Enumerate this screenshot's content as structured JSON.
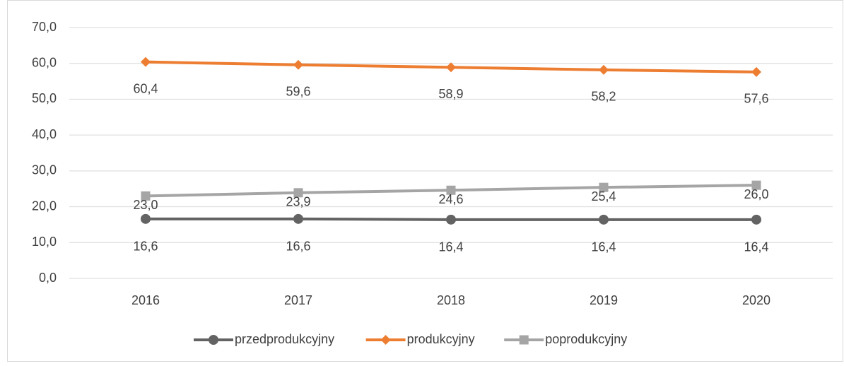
{
  "chart_data": {
    "type": "line",
    "categories": [
      "2016",
      "2017",
      "2018",
      "2019",
      "2020"
    ],
    "series": [
      {
        "name": "przedprodukcyjny",
        "color": "#636363",
        "marker": "circle",
        "values": [
          16.6,
          16.6,
          16.4,
          16.4,
          16.4
        ],
        "value_labels": [
          "16,6",
          "16,6",
          "16,4",
          "16,4",
          "16,4"
        ]
      },
      {
        "name": "produkcyjny",
        "color": "#ed7d31",
        "marker": "diamond",
        "values": [
          60.4,
          59.6,
          58.9,
          58.2,
          57.6
        ],
        "value_labels": [
          "60,4",
          "59,6",
          "58,9",
          "58,2",
          "57,6"
        ]
      },
      {
        "name": "poprodukcyjny",
        "color": "#a5a5a5",
        "marker": "square",
        "values": [
          23.0,
          23.9,
          24.6,
          25.4,
          26.0
        ],
        "value_labels": [
          "23,0",
          "23,9",
          "24,6",
          "25,4",
          "26,0"
        ]
      }
    ],
    "ylim": [
      0,
      70
    ],
    "yticks": [
      {
        "value": 0,
        "label": "0,0"
      },
      {
        "value": 10,
        "label": "10,0"
      },
      {
        "value": 20,
        "label": "20,0"
      },
      {
        "value": 30,
        "label": "30,0"
      },
      {
        "value": 40,
        "label": "40,0"
      },
      {
        "value": 50,
        "label": "50,0"
      },
      {
        "value": 60,
        "label": "60,0"
      },
      {
        "value": 70,
        "label": "70,0"
      }
    ],
    "grid": true,
    "legend": "bottom"
  }
}
